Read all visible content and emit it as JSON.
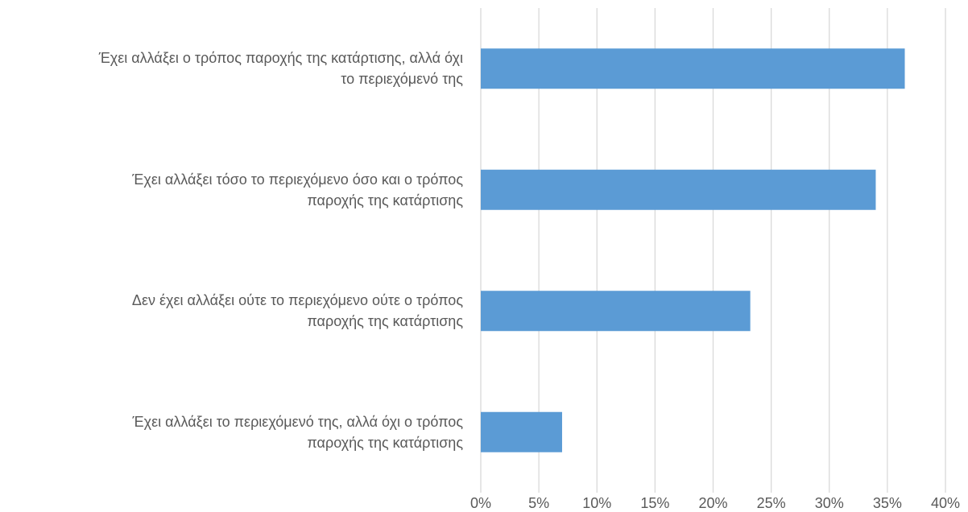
{
  "chart_data": {
    "type": "barh",
    "categories": [
      "Έχει αλλάξει ο τρόπος παροχής της κατάρτισης, αλλά όχι\nτο περιεχόμενό της",
      "Έχει αλλάξει τόσο το περιεχόμενο όσο και ο τρόπος\nπαροχής της κατάρτισης",
      "Δεν έχει αλλάξει ούτε το περιεχόμενο ούτε ο τρόπος\nπαροχής της κατάρτισης",
      "Έχει αλλάξει το περιεχόμενό της, αλλά όχι ο τρόπος\nπαροχής της κατάρτισης"
    ],
    "values": [
      36.5,
      34.0,
      23.2,
      7.0
    ],
    "color": "#5b9bd5",
    "xlim": [
      0,
      40
    ],
    "xticks": [
      {
        "value": 0,
        "label": "0%"
      },
      {
        "value": 5,
        "label": "5%"
      },
      {
        "value": 10,
        "label": "10%"
      },
      {
        "value": 15,
        "label": "15%"
      },
      {
        "value": 20,
        "label": "20%"
      },
      {
        "value": 25,
        "label": "25%"
      },
      {
        "value": 30,
        "label": "30%"
      },
      {
        "value": 35,
        "label": "35%"
      },
      {
        "value": 40,
        "label": "40%"
      }
    ],
    "grid": true
  }
}
